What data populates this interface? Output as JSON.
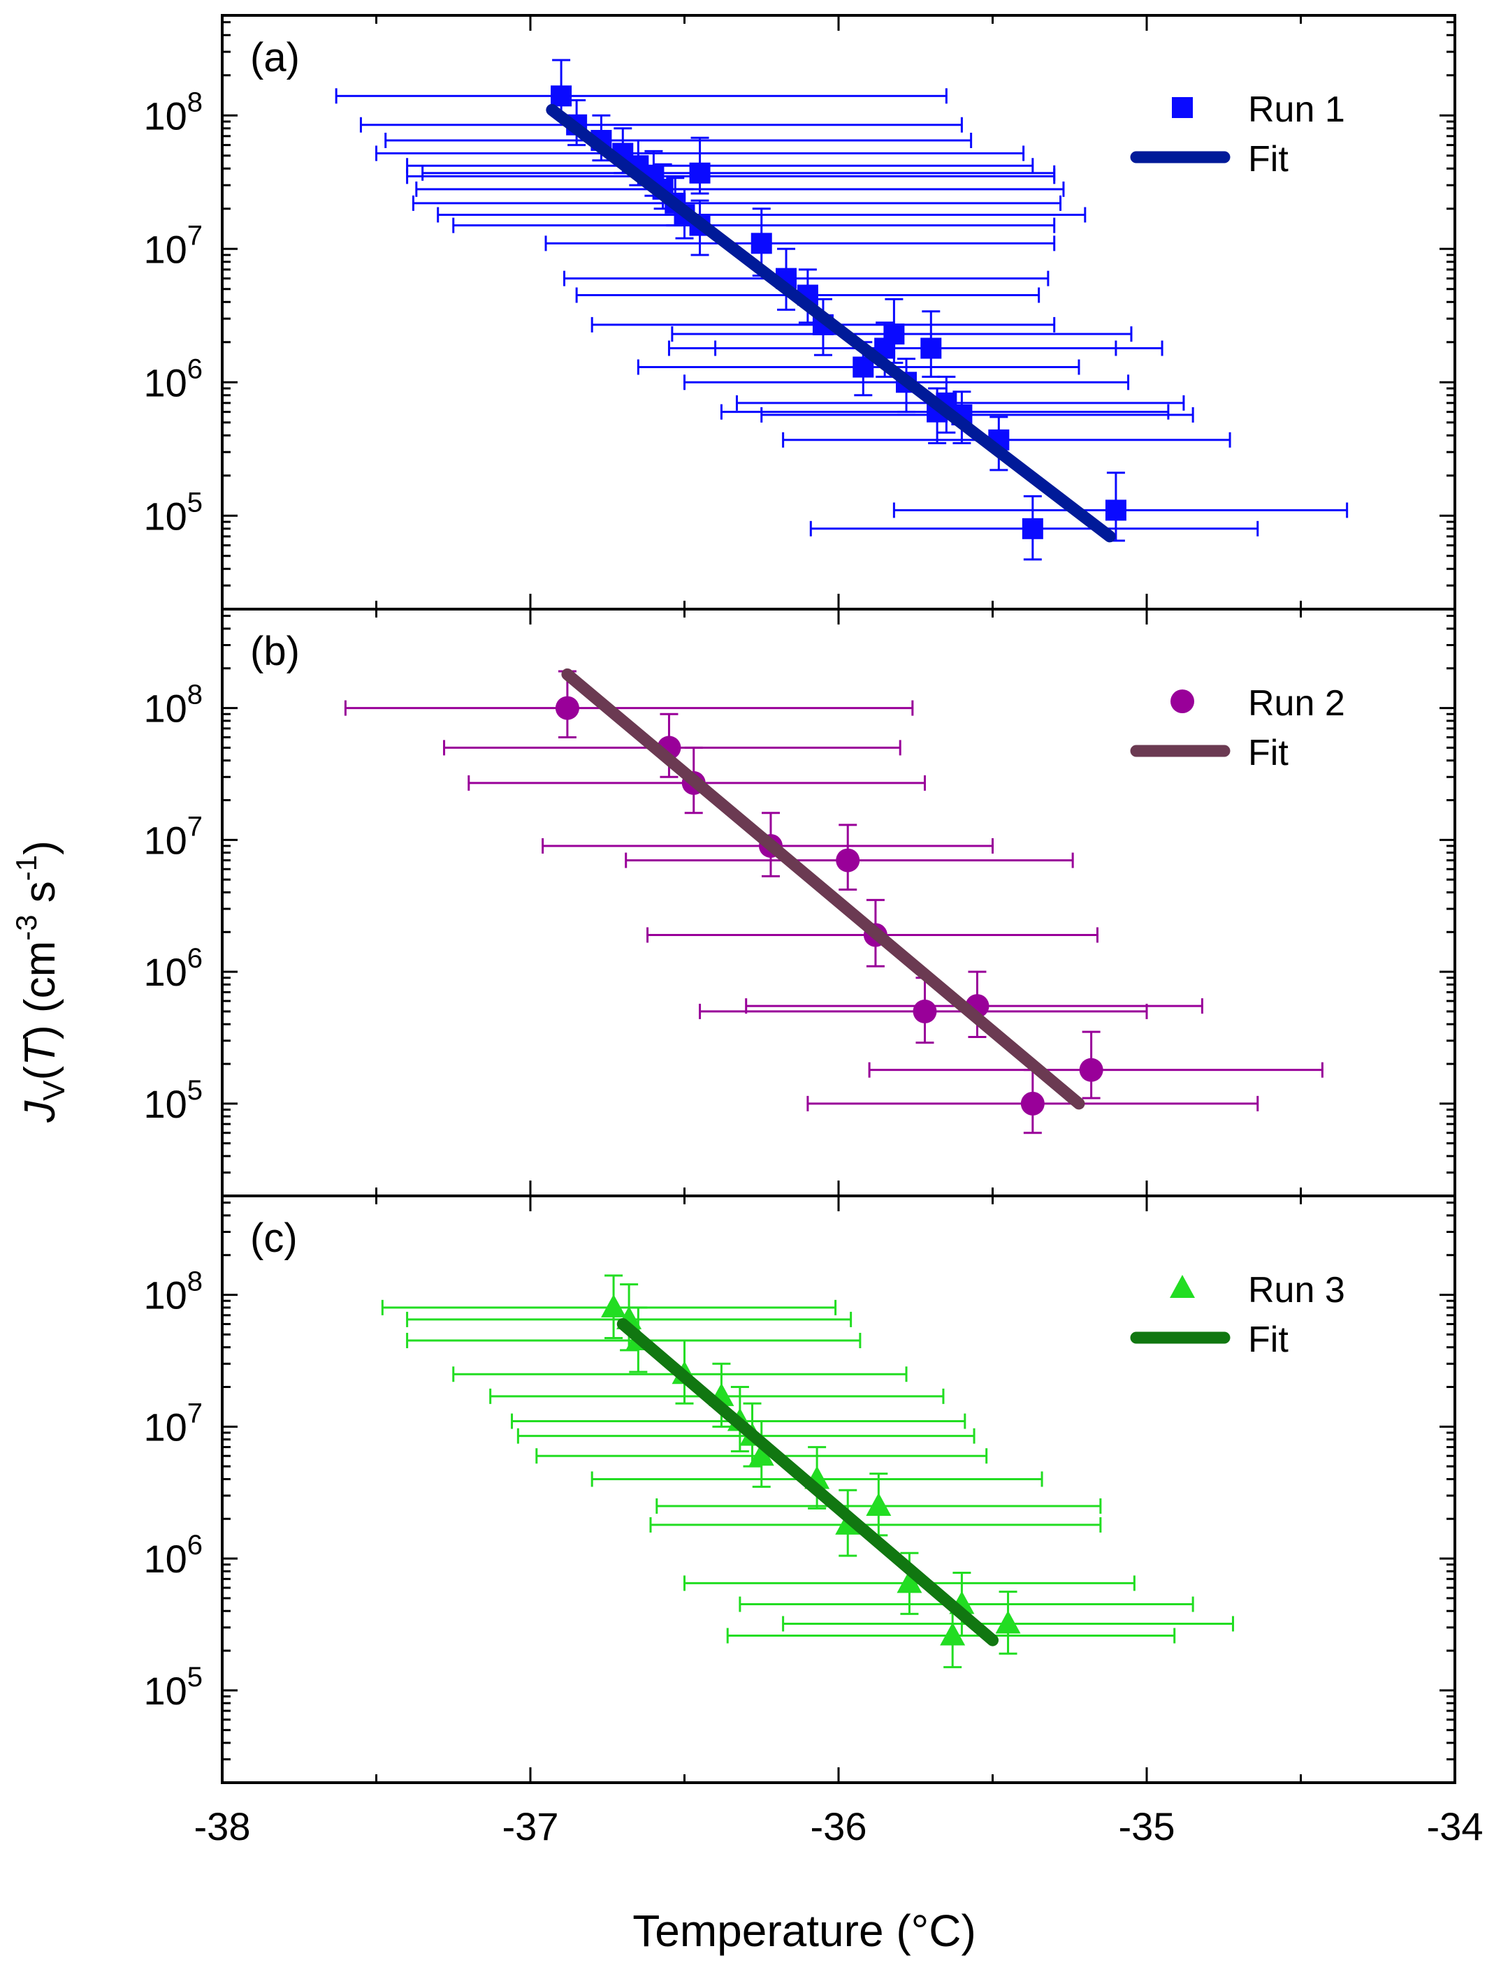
{
  "figure": {
    "xlabel": "Temperature (°C)",
    "ylabel_main": "J",
    "ylabel_sub": "V",
    "ylabel_paren_open": "(",
    "ylabel_var": "T",
    "ylabel_units": ") (cm",
    "ylabel_exp1": "-3",
    "ylabel_s": " s",
    "ylabel_exp2": "-1",
    "ylabel_close": ")"
  },
  "chart_data": [
    {
      "type": "scatter",
      "panel_label": "(a)",
      "legend": {
        "marker": "Run 1",
        "line": "Fit"
      },
      "colors": {
        "marker": "#0a0aff",
        "fit": "#001a99"
      },
      "marker": "square",
      "xlim": [
        -38,
        -34
      ],
      "ylim_log10": [
        4.3,
        8.75
      ],
      "y_ticks": [
        "10^8",
        "10^7",
        "10^6",
        "10^5"
      ],
      "fit": {
        "x": [
          -36.93,
          -35.12
        ],
        "y": [
          110000000,
          70000
        ]
      },
      "points": [
        {
          "x": -36.9,
          "y": 140000000,
          "xerr": [
            0.73,
            1.25
          ],
          "yerr": [
            100000000.0,
            260000000.0
          ]
        },
        {
          "x": -36.85,
          "y": 85000000,
          "xerr": [
            0.7,
            1.25
          ],
          "yerr": [
            60000000.0,
            130000000.0
          ]
        },
        {
          "x": -36.77,
          "y": 65000000,
          "xerr": [
            0.7,
            1.2
          ],
          "yerr": [
            46000000.0,
            100000000.0
          ]
        },
        {
          "x": -36.7,
          "y": 52000000,
          "xerr": [
            0.8,
            1.3
          ],
          "yerr": [
            37000000.0,
            80000000.0
          ]
        },
        {
          "x": -36.65,
          "y": 42000000,
          "xerr": [
            0.75,
            1.28
          ],
          "yerr": [
            30000000.0,
            65000000.0
          ]
        },
        {
          "x": -36.6,
          "y": 35000000,
          "xerr": [
            0.8,
            1.3
          ],
          "yerr": [
            25000000.0,
            54000000.0
          ]
        },
        {
          "x": -36.57,
          "y": 28000000,
          "xerr": [
            0.8,
            1.3
          ],
          "yerr": [
            20000000.0,
            43000000.0
          ]
        },
        {
          "x": -36.53,
          "y": 22000000,
          "xerr": [
            0.85,
            1.25
          ],
          "yerr": [
            15000000.0,
            34000000.0
          ]
        },
        {
          "x": -36.5,
          "y": 18000000,
          "xerr": [
            0.8,
            1.3
          ],
          "yerr": [
            12000000.0,
            28000000.0
          ]
        },
        {
          "x": -36.45,
          "y": 37000000,
          "xerr": [
            0.9,
            1.15
          ],
          "yerr": [
            26000000.0,
            68000000.0
          ]
        },
        {
          "x": -36.45,
          "y": 15000000,
          "xerr": [
            0.8,
            1.15
          ],
          "yerr": [
            9000000.0,
            23000000.0
          ]
        },
        {
          "x": -36.25,
          "y": 11000000,
          "xerr": [
            0.7,
            0.95
          ],
          "yerr": [
            6300000.0,
            20000000.0
          ]
        },
        {
          "x": -36.17,
          "y": 6000000,
          "xerr": [
            0.72,
            0.85
          ],
          "yerr": [
            3500000.0,
            10000000.0
          ]
        },
        {
          "x": -36.1,
          "y": 4500000,
          "xerr": [
            0.75,
            0.75
          ],
          "yerr": [
            2800000.0,
            7000000.0
          ]
        },
        {
          "x": -36.05,
          "y": 2700000,
          "xerr": [
            0.75,
            0.75
          ],
          "yerr": [
            1600000.0,
            4200000.0
          ]
        },
        {
          "x": -35.92,
          "y": 1300000,
          "xerr": [
            0.73,
            0.7
          ],
          "yerr": [
            800000.0,
            2000000.0
          ]
        },
        {
          "x": -35.85,
          "y": 1800000,
          "xerr": [
            0.7,
            0.75
          ],
          "yerr": [
            1100000.0,
            2800000.0
          ]
        },
        {
          "x": -35.82,
          "y": 2300000,
          "xerr": [
            0.72,
            0.77
          ],
          "yerr": [
            1400000.0,
            4200000.0
          ]
        },
        {
          "x": -35.78,
          "y": 1000000,
          "xerr": [
            0.72,
            0.72
          ],
          "yerr": [
            600000.0,
            1500000.0
          ]
        },
        {
          "x": -35.7,
          "y": 1800000,
          "xerr": [
            0.7,
            0.75
          ],
          "yerr": [
            1100000.0,
            3400000.0
          ]
        },
        {
          "x": -35.68,
          "y": 600000,
          "xerr": [
            0.7,
            0.75
          ],
          "yerr": [
            350000.0,
            900000.0
          ]
        },
        {
          "x": -35.65,
          "y": 700000,
          "xerr": [
            0.68,
            0.77
          ],
          "yerr": [
            420000.0,
            1100000.0
          ]
        },
        {
          "x": -35.6,
          "y": 570000,
          "xerr": [
            0.65,
            0.75
          ],
          "yerr": [
            350000.0,
            850000.0
          ]
        },
        {
          "x": -35.48,
          "y": 370000,
          "xerr": [
            0.7,
            0.75
          ],
          "yerr": [
            220000.0,
            550000.0
          ]
        },
        {
          "x": -35.37,
          "y": 80000,
          "xerr": [
            0.72,
            0.73
          ],
          "yerr": [
            47000.0,
            140000.0
          ]
        },
        {
          "x": -35.1,
          "y": 110000,
          "xerr": [
            0.72,
            0.75
          ],
          "yerr": [
            65000.0,
            210000.0
          ]
        }
      ]
    },
    {
      "type": "scatter",
      "panel_label": "(b)",
      "legend": {
        "marker": "Run 2",
        "line": "Fit"
      },
      "colors": {
        "marker": "#990099",
        "fit": "#6b3a52"
      },
      "marker": "circle",
      "xlim": [
        -38,
        -34
      ],
      "ylim_log10": [
        4.3,
        8.75
      ],
      "y_ticks": [
        "10^8",
        "10^7",
        "10^6",
        "10^5"
      ],
      "fit": {
        "x": [
          -36.88,
          -35.22
        ],
        "y": [
          180000000,
          100000
        ]
      },
      "points": [
        {
          "x": -36.88,
          "y": 100000000,
          "xerr": [
            0.72,
            1.12
          ],
          "yerr": [
            60000000.0,
            190000000.0
          ]
        },
        {
          "x": -36.55,
          "y": 50000000,
          "xerr": [
            0.73,
            0.75
          ],
          "yerr": [
            30000000.0,
            90000000.0
          ]
        },
        {
          "x": -36.47,
          "y": 27000000,
          "xerr": [
            0.73,
            0.75
          ],
          "yerr": [
            16000000.0,
            50000000.0
          ]
        },
        {
          "x": -36.22,
          "y": 9000000,
          "xerr": [
            0.74,
            0.72
          ],
          "yerr": [
            5300000.0,
            16000000.0
          ]
        },
        {
          "x": -35.97,
          "y": 7000000,
          "xerr": [
            0.72,
            0.73
          ],
          "yerr": [
            4200000.0,
            13000000.0
          ]
        },
        {
          "x": -35.88,
          "y": 1900000,
          "xerr": [
            0.74,
            0.72
          ],
          "yerr": [
            1100000.0,
            3500000.0
          ]
        },
        {
          "x": -35.72,
          "y": 500000,
          "xerr": [
            0.73,
            0.72
          ],
          "yerr": [
            290000.0,
            900000.0
          ]
        },
        {
          "x": -35.55,
          "y": 550000,
          "xerr": [
            0.75,
            0.73
          ],
          "yerr": [
            320000.0,
            1000000.0
          ]
        },
        {
          "x": -35.37,
          "y": 100000,
          "xerr": [
            0.73,
            0.73
          ],
          "yerr": [
            60000.0,
            180000.0
          ]
        },
        {
          "x": -35.18,
          "y": 180000,
          "xerr": [
            0.72,
            0.75
          ],
          "yerr": [
            110000.0,
            350000.0
          ]
        }
      ]
    },
    {
      "type": "scatter",
      "panel_label": "(c)",
      "legend": {
        "marker": "Run 3",
        "line": "Fit"
      },
      "colors": {
        "marker": "#22dd22",
        "fit": "#117711"
      },
      "marker": "triangle",
      "xlim": [
        -38,
        -34
      ],
      "ylim_log10": [
        4.3,
        8.75
      ],
      "y_ticks": [
        "10^8",
        "10^7",
        "10^6",
        "10^5"
      ],
      "fit": {
        "x": [
          -36.7,
          -35.5
        ],
        "y": [
          60000000,
          240000
        ]
      },
      "points": [
        {
          "x": -36.73,
          "y": 80000000,
          "xerr": [
            0.75,
            0.72
          ],
          "yerr": [
            47000000.0,
            140000000.0
          ]
        },
        {
          "x": -36.68,
          "y": 65000000,
          "xerr": [
            0.72,
            0.72
          ],
          "yerr": [
            38000000.0,
            120000000.0
          ]
        },
        {
          "x": -36.65,
          "y": 45000000,
          "xerr": [
            0.75,
            0.72
          ],
          "yerr": [
            26000000.0,
            80000000.0
          ]
        },
        {
          "x": -36.5,
          "y": 25000000,
          "xerr": [
            0.75,
            0.72
          ],
          "yerr": [
            15000000.0,
            45000000.0
          ]
        },
        {
          "x": -36.38,
          "y": 17000000,
          "xerr": [
            0.75,
            0.72
          ],
          "yerr": [
            10000000.0,
            30000000.0
          ]
        },
        {
          "x": -36.32,
          "y": 11000000,
          "xerr": [
            0.74,
            0.73
          ],
          "yerr": [
            6500000.0,
            20000000.0
          ]
        },
        {
          "x": -36.28,
          "y": 8500000,
          "xerr": [
            0.76,
            0.72
          ],
          "yerr": [
            5000000.0,
            15000000.0
          ]
        },
        {
          "x": -36.25,
          "y": 6000000,
          "xerr": [
            0.73,
            0.73
          ],
          "yerr": [
            3500000.0,
            11000000.0
          ]
        },
        {
          "x": -36.07,
          "y": 4000000,
          "xerr": [
            0.73,
            0.73
          ],
          "yerr": [
            2400000.0,
            7000000.0
          ]
        },
        {
          "x": -35.97,
          "y": 1800000,
          "xerr": [
            0.64,
            0.82
          ],
          "yerr": [
            1050000.0,
            3300000.0
          ]
        },
        {
          "x": -35.87,
          "y": 2500000,
          "xerr": [
            0.72,
            0.72
          ],
          "yerr": [
            1500000.0,
            4400000.0
          ]
        },
        {
          "x": -35.77,
          "y": 650000,
          "xerr": [
            0.73,
            0.73
          ],
          "yerr": [
            380000.0,
            1100000.0
          ]
        },
        {
          "x": -35.63,
          "y": 260000,
          "xerr": [
            0.73,
            0.72
          ],
          "yerr": [
            150000.0,
            460000.0
          ]
        },
        {
          "x": -35.6,
          "y": 450000,
          "xerr": [
            0.72,
            0.75
          ],
          "yerr": [
            260000.0,
            780000.0
          ]
        },
        {
          "x": -35.45,
          "y": 320000,
          "xerr": [
            0.73,
            0.73
          ],
          "yerr": [
            190000.0,
            560000.0
          ]
        }
      ]
    }
  ],
  "x_ticks": [
    -38,
    -37,
    -36,
    -35,
    -34
  ]
}
